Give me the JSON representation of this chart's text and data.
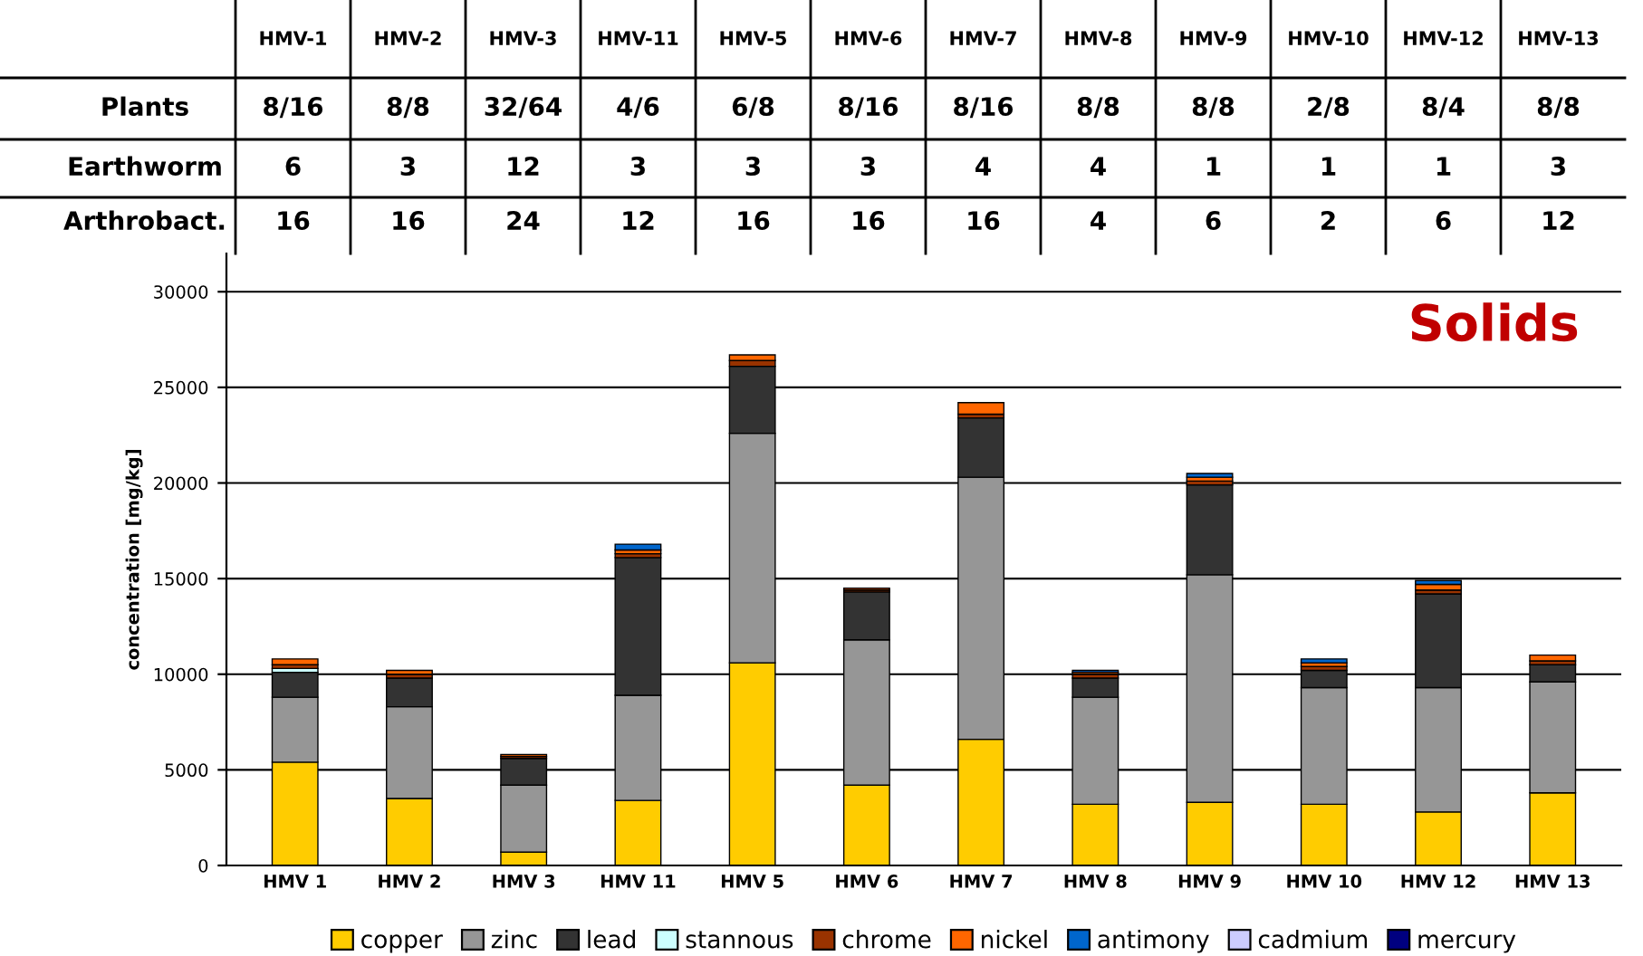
{
  "chart_data": {
    "type": "bar",
    "stacked": true,
    "title": "Solids",
    "ylabel": "concentration [mg/kg]",
    "categories": [
      "HMV 1",
      "HMV 2",
      "HMV 3",
      "HMV 11",
      "HMV 5",
      "HMV 6",
      "HMV 7",
      "HMV 8",
      "HMV 9",
      "HMV 10",
      "HMV 12",
      "HMV 13"
    ],
    "series": [
      {
        "name": "copper",
        "color": "#ffcc00",
        "values": [
          5400,
          3500,
          700,
          3400,
          10600,
          4200,
          6600,
          3200,
          3300,
          3200,
          2800,
          3800
        ]
      },
      {
        "name": "zinc",
        "color": "#969696",
        "values": [
          3400,
          4800,
          3500,
          5500,
          12000,
          7600,
          13700,
          5600,
          11900,
          6100,
          6500,
          5800
        ]
      },
      {
        "name": "lead",
        "color": "#333333",
        "values": [
          1300,
          1500,
          1400,
          7200,
          3500,
          2500,
          3100,
          1000,
          4700,
          900,
          4900,
          900
        ]
      },
      {
        "name": "stannous",
        "color": "#ccffff",
        "values": [
          200,
          null,
          0,
          0,
          0,
          0,
          0,
          0,
          0,
          0,
          0,
          null
        ]
      },
      {
        "name": "chrome",
        "color": "#993300",
        "values": [
          200,
          200,
          100,
          200,
          300,
          100,
          200,
          200,
          200,
          200,
          200,
          200
        ]
      },
      {
        "name": "nickel",
        "color": "#ff6600",
        "values": [
          300,
          200,
          100,
          200,
          300,
          100,
          600,
          100,
          200,
          200,
          300,
          300
        ]
      },
      {
        "name": "antimony",
        "color": "#0066cc",
        "values": [
          0,
          0,
          0,
          300,
          0,
          0,
          0,
          100,
          200,
          200,
          200,
          0
        ]
      },
      {
        "name": "cadmium",
        "color": "#ccccff",
        "values": [
          0,
          0,
          0,
          0,
          0,
          0,
          0,
          0,
          0,
          0,
          0,
          0
        ]
      },
      {
        "name": "mercury",
        "color": "#000080",
        "values": [
          0,
          0,
          0,
          0,
          0,
          0,
          0,
          0,
          0,
          0,
          0,
          0
        ]
      }
    ],
    "ylim": [
      0,
      32000
    ],
    "yticks": [
      0,
      5000,
      10000,
      15000,
      20000,
      25000,
      30000
    ],
    "grid": "y",
    "legend": "bottom",
    "annotations": [
      "HMV-1",
      "HMV-2",
      "HMV-3",
      "HMV-11",
      "HMV-5",
      "HMV-6",
      "HMV-7",
      "HMV-8",
      "HMV-9",
      "HMV-10",
      "HMV-12",
      "HMV-13",
      "Plants",
      "8/16",
      "8/8",
      "32/64",
      "4/6",
      "6/8",
      "8/16",
      "8/16",
      "8/8",
      "8/8",
      "2/8",
      "8/4",
      "8/8",
      "Earthworm",
      "6",
      "3",
      "12",
      "3",
      "3",
      "3",
      "4",
      "4",
      "1",
      "1",
      "1",
      "3",
      "Arthrobact.",
      "16",
      "16",
      "24",
      "12",
      "16",
      "16",
      "16",
      "4",
      "6",
      "2",
      "6",
      "12"
    ]
  }
}
